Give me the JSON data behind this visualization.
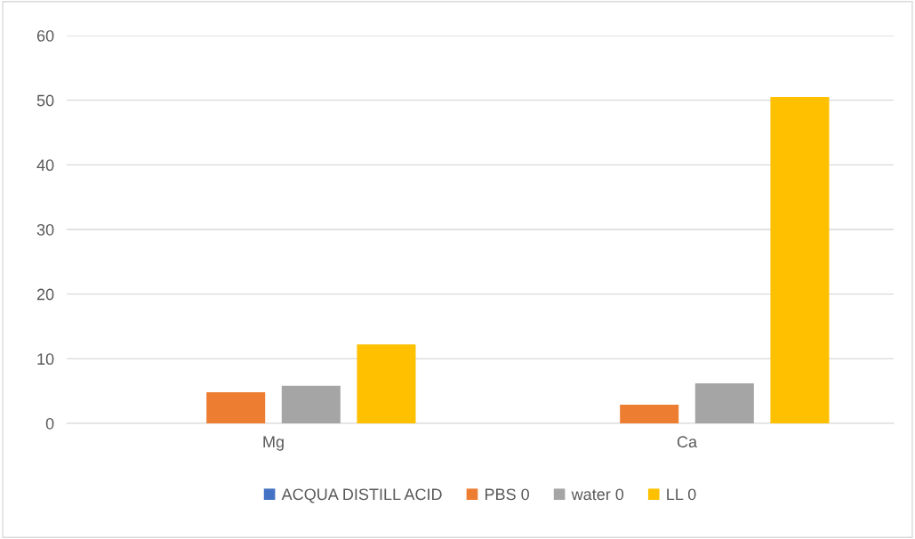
{
  "chart_data": {
    "type": "bar",
    "categories": [
      "Mg",
      "Ca"
    ],
    "series": [
      {
        "name": "ACQUA DISTILL ACID",
        "color": "#4472c4",
        "values": [
          0,
          0
        ]
      },
      {
        "name": "PBS 0",
        "color": "#ed7d31",
        "values": [
          4.8,
          2.9
        ]
      },
      {
        "name": "water 0",
        "color": "#a5a5a5",
        "values": [
          5.8,
          6.2
        ]
      },
      {
        "name": "LL 0",
        "color": "#ffc000",
        "values": [
          12.2,
          50.5
        ]
      }
    ],
    "ylim": [
      0,
      60
    ],
    "yticks": [
      0,
      10,
      20,
      30,
      40,
      50,
      60
    ],
    "grid": "y",
    "legend": "bottom"
  }
}
